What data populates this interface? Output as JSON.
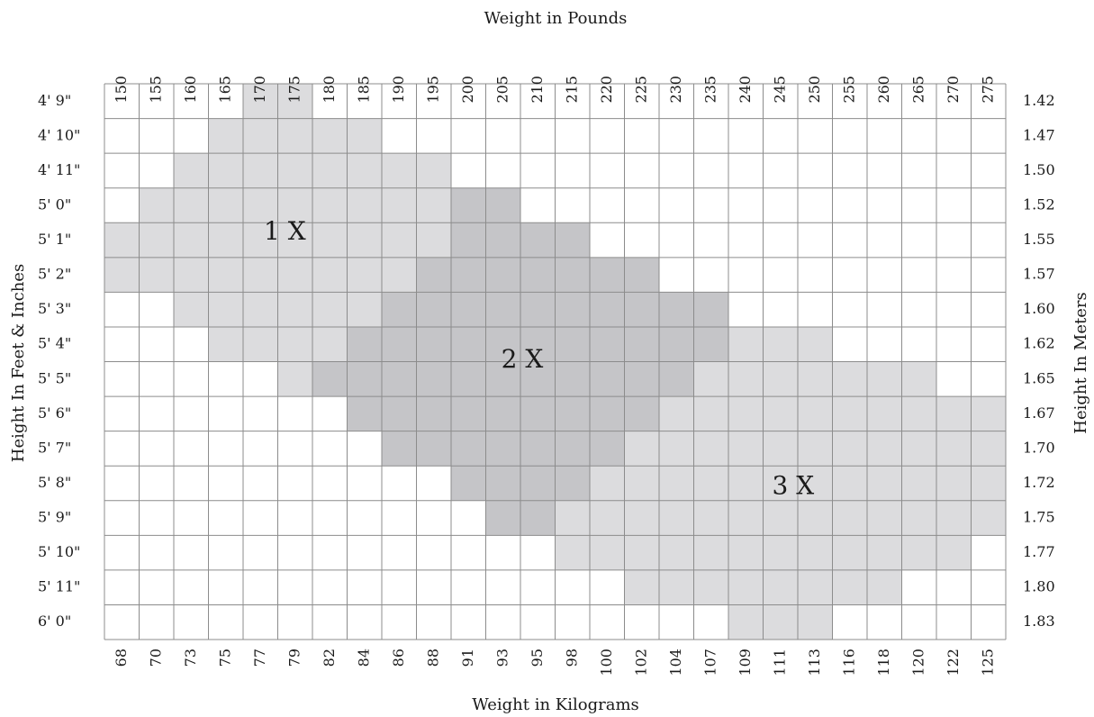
{
  "chart_data": {
    "type": "heatmap",
    "title": "",
    "top_axis_label": "Weight in Pounds",
    "bottom_axis_label": "Weight in Kilograms",
    "left_axis_label": "Height In Feet & Inches",
    "right_axis_label": "Height In Meters",
    "pounds": [
      "150",
      "155",
      "160",
      "165",
      "170",
      "175",
      "180",
      "185",
      "190",
      "195",
      "200",
      "205",
      "210",
      "215",
      "220",
      "225",
      "230",
      "235",
      "240",
      "245",
      "250",
      "255",
      "260",
      "265",
      "270",
      "275"
    ],
    "kilograms": [
      "68",
      "70",
      "73",
      "75",
      "77",
      "79",
      "82",
      "84",
      "86",
      "88",
      "91",
      "93",
      "95",
      "98",
      "100",
      "102",
      "104",
      "107",
      "109",
      "111",
      "113",
      "116",
      "118",
      "120",
      "122",
      "125"
    ],
    "heights_ft_in": [
      "4' 9\"",
      "4' 10\"",
      "4' 11\"",
      "5' 0\"",
      "5' 1\"",
      "5' 2\"",
      "5' 3\"",
      "5' 4\"",
      "5' 5\"",
      "5' 6\"",
      "5' 7\"",
      "5' 8\"",
      "5' 9\"",
      "5' 10\"",
      "5' 11\"",
      "6' 0\""
    ],
    "heights_m": [
      "1.42",
      "1.47",
      "1.50",
      "1.52",
      "1.55",
      "1.57",
      "1.60",
      "1.62",
      "1.65",
      "1.67",
      "1.70",
      "1.72",
      "1.75",
      "1.77",
      "1.80",
      "1.83"
    ],
    "zones": [
      {
        "name": "1 X",
        "color": "#dcdcde"
      },
      {
        "name": "2 X",
        "color": "#c5c5c8"
      },
      {
        "name": "3 X",
        "color": "#dcdcde"
      }
    ],
    "grid_color": "#8c8c8c",
    "empty_color": "#ffffff",
    "zone_ranges": [
      [
        [
          1,
          4,
          5
        ]
      ],
      [
        [
          1,
          3,
          7
        ]
      ],
      [
        [
          1,
          2,
          9
        ]
      ],
      [
        [
          1,
          1,
          9
        ],
        [
          2,
          10,
          11
        ]
      ],
      [
        [
          1,
          0,
          9
        ],
        [
          2,
          10,
          13
        ]
      ],
      [
        [
          1,
          0,
          8
        ],
        [
          2,
          9,
          15
        ]
      ],
      [
        [
          1,
          2,
          7
        ],
        [
          2,
          8,
          17
        ]
      ],
      [
        [
          1,
          3,
          6
        ],
        [
          2,
          7,
          17
        ],
        [
          3,
          18,
          20
        ]
      ],
      [
        [
          1,
          5,
          5
        ],
        [
          2,
          6,
          16
        ],
        [
          3,
          17,
          23
        ]
      ],
      [
        [
          2,
          7,
          15
        ],
        [
          3,
          16,
          25
        ]
      ],
      [
        [
          2,
          8,
          14
        ],
        [
          3,
          15,
          25
        ]
      ],
      [
        [
          2,
          10,
          13
        ],
        [
          3,
          14,
          25
        ]
      ],
      [
        [
          2,
          11,
          12
        ],
        [
          3,
          13,
          25
        ]
      ],
      [
        [
          3,
          13,
          24
        ]
      ],
      [
        [
          3,
          15,
          22
        ]
      ],
      [
        [
          3,
          18,
          20
        ]
      ]
    ]
  }
}
